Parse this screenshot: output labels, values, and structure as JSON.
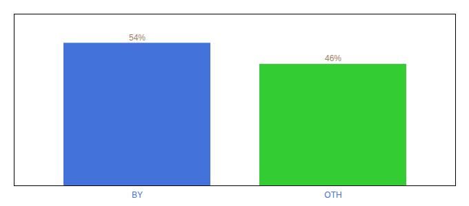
{
  "chart_data": {
    "type": "bar",
    "categories": [
      "BY",
      "OTH"
    ],
    "values": [
      54,
      46
    ],
    "colors": [
      "#4472db",
      "#33cc33"
    ],
    "data_labels": true,
    "value_labels": [
      "54%",
      "46%"
    ],
    "ylim": [
      0,
      65
    ],
    "yticks": [],
    "tick_labels": "x"
  }
}
